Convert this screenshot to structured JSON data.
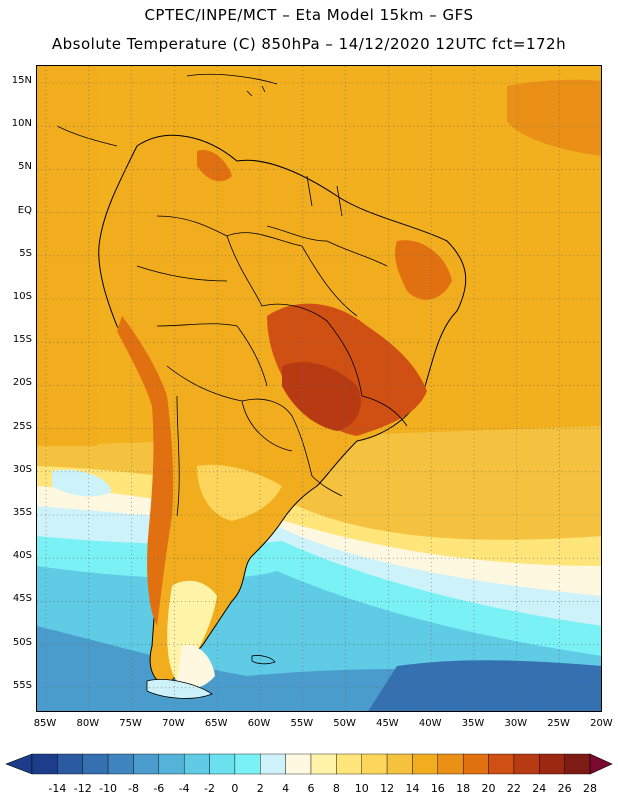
{
  "header": {
    "line1": "CPTEC/INPE/MCT –  Eta Model 15km – GFS",
    "line2": "Absolute Temperature (C) 850hPa – 14/12/2020 12UTC fct=172h"
  },
  "map": {
    "lat_labels": [
      "15N",
      "10N",
      "5N",
      "EQ",
      "5S",
      "10S",
      "15S",
      "20S",
      "25S",
      "30S",
      "35S",
      "40S",
      "45S",
      "50S",
      "55S"
    ],
    "lon_labels": [
      "85W",
      "80W",
      "75W",
      "70W",
      "65W",
      "60W",
      "55W",
      "50W",
      "45W",
      "40W",
      "35W",
      "30W",
      "25W",
      "20W"
    ],
    "grid": "dotted",
    "field": "Absolute Temperature (C) 850hPa"
  },
  "colorbar": {
    "ticks": [
      "-14",
      "-12",
      "-10",
      "-8",
      "-6",
      "-4",
      "-2",
      "0",
      "2",
      "4",
      "6",
      "8",
      "10",
      "12",
      "14",
      "16",
      "18",
      "20",
      "22",
      "24",
      "26",
      "28"
    ],
    "colors": [
      "#1e3c8c",
      "#2a5aa0",
      "#3570b0",
      "#3f85c0",
      "#4a9ccd",
      "#55b3da",
      "#5fcbe5",
      "#6be0ee",
      "#7af2f5",
      "#cdf2fa",
      "#fff8e0",
      "#fff3a8",
      "#ffe57a",
      "#fcd55a",
      "#f5c240",
      "#f2ad1e",
      "#ea9016",
      "#e07010",
      "#cf5012",
      "#b83a12",
      "#9c2812",
      "#7c1c14"
    ]
  }
}
